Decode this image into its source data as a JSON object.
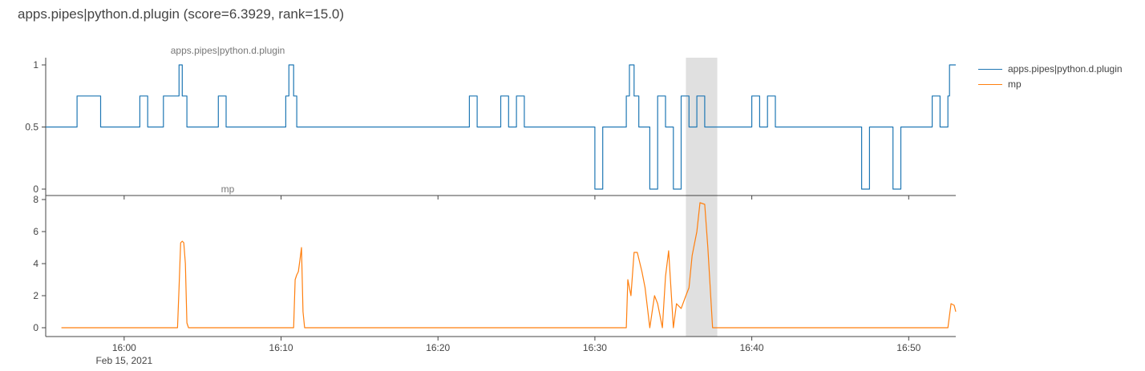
{
  "title": "apps.pipes|python.d.plugin (score=6.3929, rank=15.0)",
  "colors": {
    "series1": "#1f77b4",
    "series2": "#ff7f0e",
    "highlight": "#e0e0e0",
    "axis": "#444444",
    "tick_text": "#444444"
  },
  "legend": [
    {
      "label": "apps.pipes|python.d.plugin",
      "color": "#1f77b4"
    },
    {
      "label": "mp",
      "color": "#ff7f0e"
    }
  ],
  "chart_data": [
    {
      "type": "line",
      "line_shape": "step",
      "subplot_title": "apps.pipes|python.d.plugin",
      "series_name": "apps.pipes|python.d.plugin",
      "x_range": [
        "15:55",
        "16:53"
      ],
      "ylim": [
        0,
        1
      ],
      "yticks": [
        0,
        0.5,
        1
      ],
      "ytick_labels": [
        "0",
        "0.5",
        "1"
      ],
      "x": [
        "15:55",
        "15:57",
        "15:57.5",
        "15:58.5",
        "15:59.0",
        "16:01",
        "16:01.5",
        "16:02",
        "16:02.5",
        "16:03.5",
        "16:03.6",
        "16:03.7",
        "16:03.8",
        "16:04",
        "16:06",
        "16:06.5",
        "16:10.3",
        "16:10.5",
        "16:10.6",
        "16:10.8",
        "16:11",
        "16:22",
        "16:22.5",
        "16:24",
        "16:24.5",
        "16:25",
        "16:25.5",
        "16:30",
        "16:30.5",
        "16:31",
        "16:32",
        "16:32.2",
        "16:32.5",
        "16:32.8",
        "16:33",
        "16:33.5",
        "16:34",
        "16:34.5",
        "16:35",
        "16:35.5",
        "16:36",
        "16:36.5",
        "16:37",
        "16:37.5",
        "16:40",
        "16:40.5",
        "16:41",
        "16:41.5",
        "16:47",
        "16:47.5",
        "16:48",
        "16:49",
        "16:49.5",
        "16:51.5",
        "16:52",
        "16:52.5",
        "16:52.6",
        "16:53"
      ],
      "y": [
        0.5,
        0.75,
        0.75,
        0.5,
        0.5,
        0.75,
        0.5,
        0.5,
        0.75,
        1,
        1,
        0.75,
        0.75,
        0.5,
        0.75,
        0.5,
        0.75,
        1,
        1,
        0.75,
        0.5,
        0.75,
        0.5,
        0.75,
        0.5,
        0.75,
        0.5,
        0,
        0.5,
        0.5,
        0.75,
        1,
        0.75,
        0.5,
        0.5,
        0,
        0.75,
        0.5,
        0,
        0.75,
        0.5,
        0.75,
        0.5,
        0.5,
        0.75,
        0.5,
        0.75,
        0.5,
        0,
        0.5,
        0.5,
        0,
        0.5,
        0.75,
        0.5,
        0.75,
        1,
        1
      ]
    },
    {
      "type": "line",
      "line_shape": "spline",
      "subplot_title": "mp",
      "series_name": "mp",
      "x_range": [
        "15:55",
        "16:53"
      ],
      "ylim": [
        -0.5,
        8
      ],
      "yticks": [
        0,
        2,
        4,
        6,
        8
      ],
      "ytick_labels": [
        "0",
        "2",
        "4",
        "6",
        "8"
      ],
      "xtick_labels": [
        "16:00",
        "16:10",
        "16:20",
        "16:30",
        "16:40",
        "16:50"
      ],
      "xtick_date": "Feb 15, 2021",
      "x": [
        "15:56",
        "16:03.4",
        "16:03.5",
        "16:03.6",
        "16:03.7",
        "16:03.8",
        "16:03.9",
        "16:04.0",
        "16:04.1",
        "16:10.8",
        "16:10.9",
        "16:11",
        "16:11.1",
        "16:11.2",
        "16:11.3",
        "16:11.4",
        "16:11.5",
        "16:32",
        "16:32.1",
        "16:32.3",
        "16:32.5",
        "16:32.7",
        "16:33.0",
        "16:33.2",
        "16:33.5",
        "16:33.8",
        "16:34.0",
        "16:34.3",
        "16:34.5",
        "16:34.7",
        "16:35.0",
        "16:35.2",
        "16:35.5",
        "16:35.8",
        "16:36",
        "16:36.2",
        "16:36.5",
        "16:36.7",
        "16:37.0",
        "16:37.2",
        "16:37.5",
        "16:37.7",
        "16:38",
        "16:52.5",
        "16:52.7",
        "16:52.9",
        "16:53"
      ],
      "y": [
        0,
        0,
        2.5,
        5.3,
        5.4,
        5.3,
        4,
        0.3,
        0,
        0,
        3,
        3.3,
        3.5,
        4.2,
        5,
        1,
        0,
        0,
        3,
        2,
        4.7,
        4.7,
        3.5,
        2.5,
        0,
        2,
        1.5,
        0,
        3.2,
        4.8,
        0,
        1.5,
        1.2,
        2,
        2.5,
        4.5,
        6,
        7.8,
        7.7,
        5,
        0,
        0,
        0,
        0,
        1.5,
        1.4,
        1
      ]
    }
  ],
  "highlight_range": [
    "16:35.8",
    "16:37.8"
  ]
}
